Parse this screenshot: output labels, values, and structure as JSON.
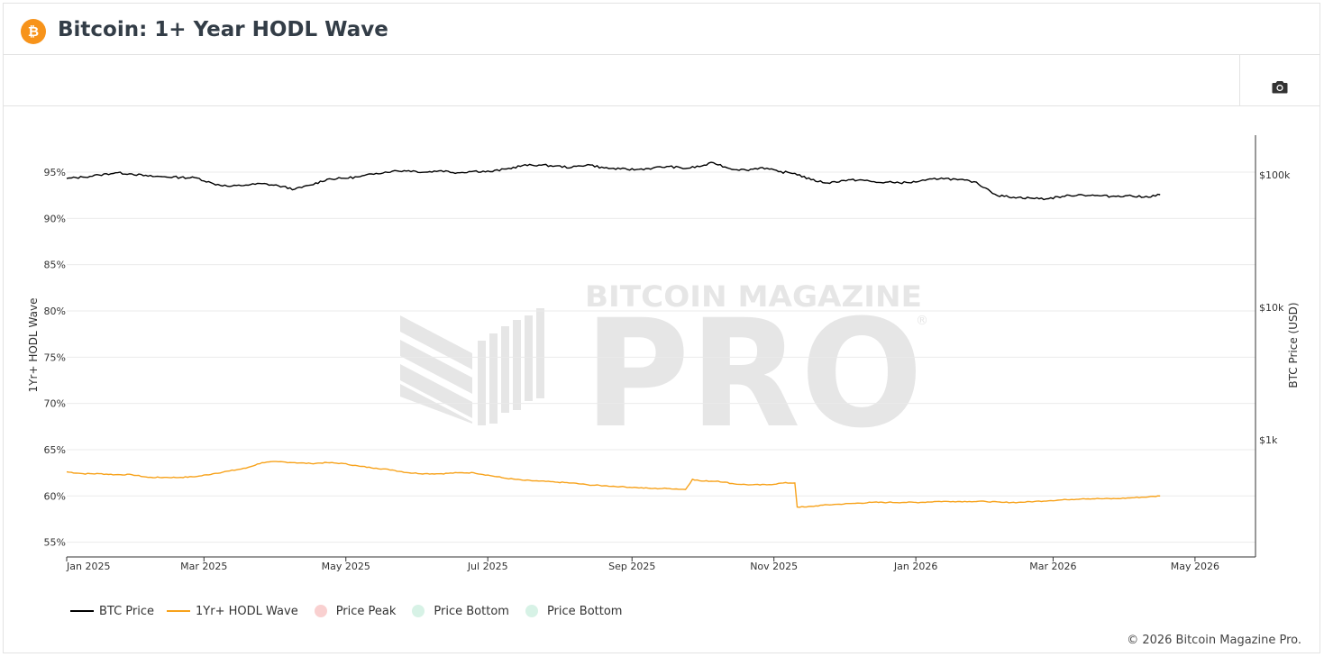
{
  "header": {
    "title": "Bitcoin: 1+ Year HODL Wave",
    "logo_icon": "bitcoin-logo-icon"
  },
  "toolbar": {
    "camera_icon": "camera-icon"
  },
  "watermark": {
    "line1": "BITCOIN MAGAZINE",
    "line2": "PRO"
  },
  "colors": {
    "btc_price": "#000000",
    "hodl_wave": "#f7a21b",
    "price_peak": "#f9d0d0",
    "price_bottom": "#d7f2e6",
    "bitcoin_orange": "#f7931a",
    "watermark": "#e6e6e6"
  },
  "legend": [
    {
      "label": "BTC Price",
      "kind": "line",
      "color": "#000000"
    },
    {
      "label": "1Yr+ HODL Wave",
      "kind": "line",
      "color": "#f7a21b"
    },
    {
      "label": "Price Peak",
      "kind": "dot",
      "color": "#f9d0d0"
    },
    {
      "label": "Price Bottom",
      "kind": "dot",
      "color": "#d7f2e6"
    },
    {
      "label": "Price Bottom",
      "kind": "dot",
      "color": "#d7f2e6"
    }
  ],
  "footer": {
    "copyright": "© 2026 Bitcoin Magazine Pro."
  },
  "chart_data": {
    "type": "line",
    "title": "Bitcoin: 1+ Year HODL Wave",
    "y_left_label": "1Yr+ HODL Wave",
    "y_right_label": "BTC Price (USD)",
    "y_left_ticks": [
      "95%",
      "90%",
      "85%",
      "80%",
      "75%",
      "70%",
      "65%",
      "60%",
      "55%"
    ],
    "y_left_tick_values": [
      95,
      90,
      85,
      80,
      75,
      70,
      65,
      60,
      55
    ],
    "y_left_range": [
      53.4,
      99
    ],
    "y_right_scale": "log",
    "y_right_ticks": [
      "$100k",
      "$10k",
      "$1k"
    ],
    "y_right_tick_values": [
      100000,
      10000,
      1000
    ],
    "y_right_range": [
      130,
      200000
    ],
    "x_ticks": [
      "Jan 2025",
      "Mar 2025",
      "May 2025",
      "Jul 2025",
      "Sep 2025",
      "Nov 2025",
      "Jan 2026",
      "Mar 2026",
      "May 2026"
    ],
    "x_tick_dates": [
      "2025-01-01",
      "2025-03-01",
      "2025-05-01",
      "2025-07-01",
      "2025-09-01",
      "2025-11-01",
      "2026-01-01",
      "2026-03-01",
      "2026-05-01"
    ],
    "x_range": [
      "2025-01-01",
      "2026-05-27"
    ],
    "grid": true,
    "legend_position": "bottom-left",
    "series": [
      {
        "name": "BTC Price",
        "axis": "right",
        "x": [
          "2025-01-01",
          "2025-01-08",
          "2025-01-15",
          "2025-01-22",
          "2025-01-29",
          "2025-02-05",
          "2025-02-12",
          "2025-02-19",
          "2025-02-26",
          "2025-03-05",
          "2025-03-12",
          "2025-03-19",
          "2025-03-26",
          "2025-04-02",
          "2025-04-09",
          "2025-04-16",
          "2025-04-23",
          "2025-04-30",
          "2025-05-07",
          "2025-05-14",
          "2025-05-21",
          "2025-05-28",
          "2025-06-04",
          "2025-06-11",
          "2025-06-18",
          "2025-06-25",
          "2025-07-02",
          "2025-07-09",
          "2025-07-16",
          "2025-07-23",
          "2025-07-30",
          "2025-08-06",
          "2025-08-13",
          "2025-08-20",
          "2025-08-27",
          "2025-09-03",
          "2025-09-10",
          "2025-09-17",
          "2025-09-24",
          "2025-10-01",
          "2025-10-06",
          "2025-10-13",
          "2025-10-20",
          "2025-10-27",
          "2025-11-03",
          "2025-11-10",
          "2025-11-17",
          "2025-11-24",
          "2025-12-01",
          "2025-12-08",
          "2025-12-15",
          "2025-12-22",
          "2025-12-29",
          "2026-01-05",
          "2026-01-12",
          "2026-01-19",
          "2026-01-26",
          "2026-02-01",
          "2026-02-05",
          "2026-02-12",
          "2026-02-19",
          "2026-02-26",
          "2026-03-05",
          "2026-03-12",
          "2026-03-19",
          "2026-03-26",
          "2026-04-02",
          "2026-04-09",
          "2026-04-16"
        ],
        "values": [
          94000,
          96500,
          100000,
          104000,
          102000,
          98000,
          97000,
          96000,
          95000,
          86000,
          82000,
          84000,
          86000,
          83000,
          78000,
          84000,
          93000,
          94500,
          97000,
          103000,
          107000,
          108000,
          105000,
          108000,
          104000,
          107000,
          106000,
          111000,
          118000,
          119000,
          117000,
          114000,
          120000,
          113000,
          111000,
          110000,
          113000,
          116000,
          112000,
          117000,
          124000,
          112000,
          109000,
          114000,
          106000,
          103000,
          92000,
          87000,
          91000,
          92000,
          88000,
          88000,
          87500,
          91000,
          95000,
          92000,
          89000,
          78000,
          70000,
          68000,
          67000,
          66000,
          69000,
          71000,
          70000,
          69000,
          70000,
          68000,
          71000
        ]
      },
      {
        "name": "1Yr+ HODL Wave",
        "axis": "left",
        "x": [
          "2025-01-01",
          "2025-01-08",
          "2025-01-15",
          "2025-01-22",
          "2025-01-29",
          "2025-02-05",
          "2025-02-12",
          "2025-02-19",
          "2025-02-26",
          "2025-03-05",
          "2025-03-12",
          "2025-03-19",
          "2025-03-26",
          "2025-04-02",
          "2025-04-09",
          "2025-04-16",
          "2025-04-23",
          "2025-04-30",
          "2025-05-07",
          "2025-05-14",
          "2025-05-21",
          "2025-05-28",
          "2025-06-04",
          "2025-06-11",
          "2025-06-18",
          "2025-06-25",
          "2025-07-02",
          "2025-07-09",
          "2025-07-16",
          "2025-07-23",
          "2025-07-30",
          "2025-08-06",
          "2025-08-13",
          "2025-08-20",
          "2025-08-27",
          "2025-09-03",
          "2025-09-10",
          "2025-09-17",
          "2025-09-24",
          "2025-09-27",
          "2025-10-01",
          "2025-10-08",
          "2025-10-15",
          "2025-10-22",
          "2025-10-29",
          "2025-11-05",
          "2025-11-10",
          "2025-11-11",
          "2025-11-15",
          "2025-11-22",
          "2025-11-29",
          "2025-12-06",
          "2025-12-13",
          "2025-12-20",
          "2025-12-27",
          "2026-01-03",
          "2026-01-10",
          "2026-01-17",
          "2026-01-24",
          "2026-01-31",
          "2026-02-07",
          "2026-02-14",
          "2026-02-21",
          "2026-02-28",
          "2026-03-07",
          "2026-03-14",
          "2026-03-21",
          "2026-03-28",
          "2026-04-04",
          "2026-04-11",
          "2026-04-16"
        ],
        "values": [
          62.6,
          62.4,
          62.4,
          62.3,
          62.3,
          62.0,
          62.0,
          62.0,
          62.1,
          62.4,
          62.7,
          63.0,
          63.6,
          63.7,
          63.6,
          63.5,
          63.6,
          63.5,
          63.2,
          63.0,
          62.8,
          62.5,
          62.4,
          62.4,
          62.5,
          62.5,
          62.2,
          61.9,
          61.7,
          61.6,
          61.5,
          61.4,
          61.2,
          61.1,
          61.0,
          60.9,
          60.8,
          60.8,
          60.7,
          61.8,
          61.6,
          61.6,
          61.3,
          61.2,
          61.2,
          61.4,
          61.4,
          58.8,
          58.8,
          59.0,
          59.1,
          59.2,
          59.3,
          59.3,
          59.3,
          59.3,
          59.4,
          59.4,
          59.4,
          59.4,
          59.3,
          59.3,
          59.4,
          59.5,
          59.6,
          59.7,
          59.7,
          59.7,
          59.8,
          59.9,
          60.0
        ]
      }
    ]
  }
}
